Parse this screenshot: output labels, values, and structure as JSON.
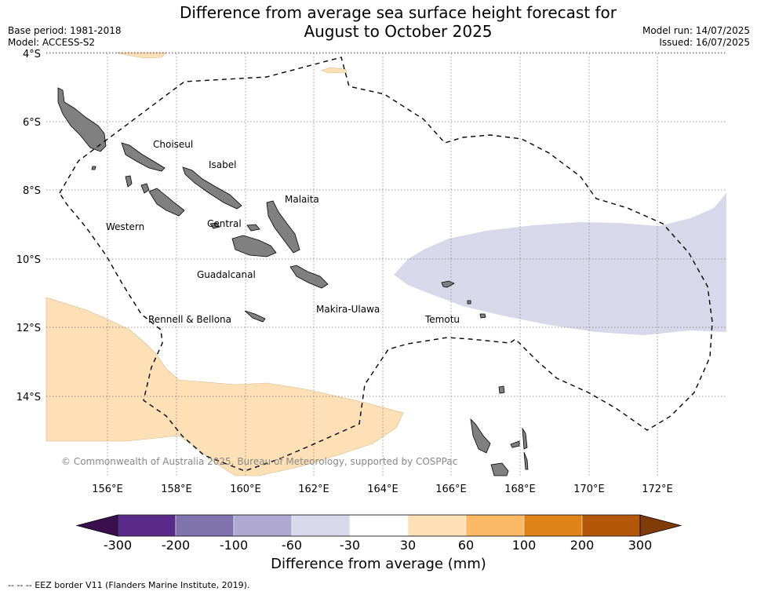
{
  "title_line1": "Difference from average sea surface height forecast for",
  "title_line2": "August to October 2025",
  "meta_left": [
    "Base period: 1981-2018",
    "Model: ACCESS-S2"
  ],
  "meta_right": [
    "Model run: 14/07/2025",
    "Issued: 16/07/2025"
  ],
  "lat_labels": [
    "4°S",
    "6°S",
    "8°S",
    "10°S",
    "12°S",
    "14°S"
  ],
  "lon_labels": [
    "156°E",
    "158°E",
    "160°E",
    "162°E",
    "164°E",
    "166°E",
    "168°E",
    "170°E",
    "172°E"
  ],
  "regions": [
    "Choiseul",
    "Isabel",
    "Malaita",
    "Western",
    "Central",
    "Guadalcanal",
    "Makira-Ulawa",
    "Rennell & Bellona",
    "Temotu"
  ],
  "copyright": "© Commonwealth of Australia 2025, Bureau of Meteorology, supported by COSPPac",
  "colorbar": {
    "ticks": [
      "-300",
      "-200",
      "-100",
      "-60",
      "-30",
      "30",
      "60",
      "100",
      "200",
      "300"
    ],
    "colors": [
      "#3b0f4f",
      "#5a2a8a",
      "#8072ad",
      "#afa8d0",
      "#d8d8ea",
      "#ffffff",
      "#fde0b6",
      "#fbb865",
      "#e08316",
      "#b35806",
      "#7f3b08"
    ],
    "title": "Difference from average (mm)"
  },
  "footnote": "--  --  -- EEZ border V11 (Flanders Marine Institute, 2019).",
  "colors": {
    "positive_anomaly": "#fde0b6",
    "negative_anomaly": "#d8d8ea",
    "land": "#808080",
    "grid": "#777777"
  }
}
